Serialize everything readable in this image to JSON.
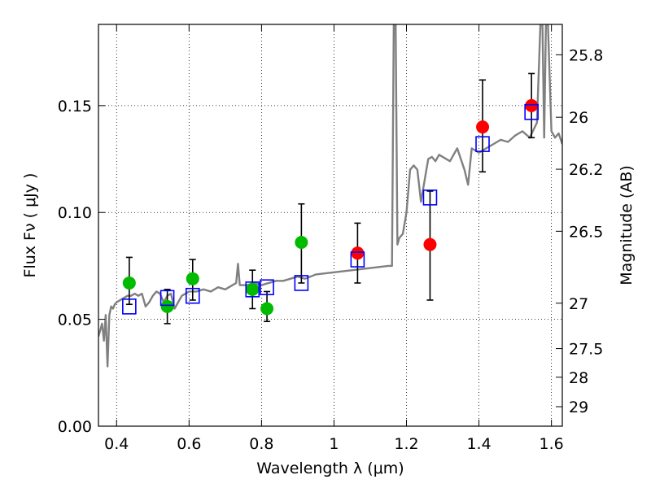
{
  "chart_data": {
    "type": "scatter",
    "xlabel": "Wavelength  λ (μm)",
    "ylabel": "Flux  Fν  ( μJy )",
    "ylabel_right": "Magnitude (AB)",
    "xlim": [
      0.35,
      1.63
    ],
    "ylim": [
      0.0,
      0.188
    ],
    "grid": true,
    "x_ticks": [
      {
        "value": 0.4,
        "label": "0.4"
      },
      {
        "value": 0.6,
        "label": "0.6"
      },
      {
        "value": 0.8,
        "label": "0.8"
      },
      {
        "value": 1.0,
        "label": "1"
      },
      {
        "value": 1.2,
        "label": "1.2"
      },
      {
        "value": 1.4,
        "label": "1.4"
      },
      {
        "value": 1.6,
        "label": "1.6"
      }
    ],
    "y_ticks": [
      {
        "value": 0.0,
        "label": "0.00"
      },
      {
        "value": 0.05,
        "label": "0.05"
      },
      {
        "value": 0.1,
        "label": "0.10"
      },
      {
        "value": 0.15,
        "label": "0.15"
      }
    ],
    "right_ticks": [
      {
        "value": 25.8,
        "label": "25.8"
      },
      {
        "value": 26.0,
        "label": "26"
      },
      {
        "value": 26.2,
        "label": "26.2"
      },
      {
        "value": 26.5,
        "label": "26.5"
      },
      {
        "value": 27.0,
        "label": "27"
      },
      {
        "value": 27.5,
        "label": "27.5"
      },
      {
        "value": 28.0,
        "label": "28"
      },
      {
        "value": 29.0,
        "label": "29"
      }
    ],
    "series": [
      {
        "kind": "model_spectrum_line",
        "color": "#808080",
        "x": [
          0.35,
          0.36,
          0.365,
          0.37,
          0.375,
          0.38,
          0.385,
          0.39,
          0.395,
          0.4,
          0.41,
          0.42,
          0.43,
          0.44,
          0.45,
          0.46,
          0.47,
          0.48,
          0.49,
          0.5,
          0.51,
          0.52,
          0.53,
          0.54,
          0.55,
          0.56,
          0.58,
          0.6,
          0.62,
          0.64,
          0.66,
          0.68,
          0.7,
          0.72,
          0.73,
          0.735,
          0.74,
          0.76,
          0.78,
          0.8,
          0.82,
          0.84,
          0.86,
          0.88,
          0.9,
          0.92,
          0.95,
          1.0,
          1.05,
          1.1,
          1.15,
          1.16,
          1.165,
          1.17,
          1.175,
          1.18,
          1.19,
          1.2,
          1.21,
          1.22,
          1.23,
          1.24,
          1.25,
          1.26,
          1.27,
          1.28,
          1.29,
          1.3,
          1.32,
          1.34,
          1.36,
          1.37,
          1.38,
          1.4,
          1.42,
          1.44,
          1.46,
          1.48,
          1.5,
          1.52,
          1.54,
          1.56,
          1.57,
          1.575,
          1.58,
          1.585,
          1.59,
          1.6,
          1.61,
          1.62,
          1.63
        ],
        "y": [
          0.042,
          0.048,
          0.04,
          0.052,
          0.028,
          0.052,
          0.056,
          0.055,
          0.057,
          0.058,
          0.059,
          0.06,
          0.061,
          0.061,
          0.062,
          0.061,
          0.062,
          0.056,
          0.058,
          0.061,
          0.063,
          0.062,
          0.058,
          0.061,
          0.062,
          0.055,
          0.061,
          0.063,
          0.063,
          0.064,
          0.063,
          0.065,
          0.064,
          0.066,
          0.067,
          0.076,
          0.066,
          0.066,
          0.067,
          0.066,
          0.067,
          0.068,
          0.068,
          0.069,
          0.07,
          0.069,
          0.071,
          0.072,
          0.073,
          0.074,
          0.075,
          0.075,
          0.19,
          0.19,
          0.085,
          0.088,
          0.09,
          0.1,
          0.12,
          0.122,
          0.12,
          0.105,
          0.115,
          0.125,
          0.126,
          0.124,
          0.127,
          0.126,
          0.124,
          0.13,
          0.12,
          0.113,
          0.13,
          0.128,
          0.13,
          0.132,
          0.134,
          0.133,
          0.136,
          0.138,
          0.135,
          0.142,
          0.19,
          0.19,
          0.135,
          0.19,
          0.19,
          0.138,
          0.135,
          0.137,
          0.132
        ]
      },
      {
        "kind": "model_photometry_squares",
        "color": "#0000ff",
        "x": [
          0.435,
          0.54,
          0.61,
          0.775,
          0.815,
          0.91,
          1.065,
          1.265,
          1.41,
          1.545
        ],
        "y": [
          0.056,
          0.06,
          0.061,
          0.064,
          0.065,
          0.067,
          0.078,
          0.107,
          0.132,
          0.147
        ]
      },
      {
        "kind": "observed_flux_green",
        "color": "#00bb00",
        "x": [
          0.435,
          0.54,
          0.61,
          0.775,
          0.815,
          0.91
        ],
        "y": [
          0.067,
          0.056,
          0.069,
          0.064,
          0.055,
          0.086
        ],
        "yerr_low": [
          0.057,
          0.048,
          0.059,
          0.055,
          0.049,
          0.067
        ],
        "yerr_high": [
          0.079,
          0.064,
          0.078,
          0.073,
          0.063,
          0.104
        ]
      },
      {
        "kind": "observed_flux_red",
        "color": "#ff0000",
        "x": [
          1.065,
          1.265,
          1.41,
          1.545
        ],
        "y": [
          0.081,
          0.085,
          0.14,
          0.15
        ],
        "yerr_low": [
          0.067,
          0.059,
          0.119,
          0.135
        ],
        "yerr_high": [
          0.095,
          0.11,
          0.162,
          0.165
        ]
      }
    ]
  }
}
